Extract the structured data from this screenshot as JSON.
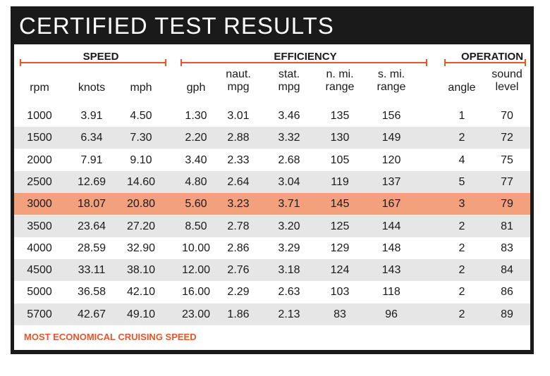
{
  "title": "CERTIFIED TEST RESULTS",
  "groups": {
    "speed": "SPEED",
    "efficiency": "EFFICIENCY",
    "operation": "OPERATION"
  },
  "headers": [
    {
      "line1": "",
      "line2": "rpm"
    },
    {
      "line1": "",
      "line2": "knots"
    },
    {
      "line1": "",
      "line2": "mph"
    },
    {
      "line1": "",
      "line2": "gph"
    },
    {
      "line1": "naut.",
      "line2": "mpg"
    },
    {
      "line1": "stat.",
      "line2": "mpg"
    },
    {
      "line1": "n. mi.",
      "line2": "range"
    },
    {
      "line1": "s. mi.",
      "line2": "range"
    },
    {
      "line1": "",
      "line2": "angle"
    },
    {
      "line1": "sound",
      "line2": "level"
    }
  ],
  "rows": [
    [
      "1000",
      "3.91",
      "4.50",
      "1.30",
      "3.01",
      "3.46",
      "135",
      "156",
      "1",
      "70"
    ],
    [
      "1500",
      "6.34",
      "7.30",
      "2.20",
      "2.88",
      "3.32",
      "130",
      "149",
      "2",
      "72"
    ],
    [
      "2000",
      "7.91",
      "9.10",
      "3.40",
      "2.33",
      "2.68",
      "105",
      "120",
      "4",
      "75"
    ],
    [
      "2500",
      "12.69",
      "14.60",
      "4.80",
      "2.64",
      "3.04",
      "119",
      "137",
      "5",
      "77"
    ],
    [
      "3000",
      "18.07",
      "20.80",
      "5.60",
      "3.23",
      "3.71",
      "145",
      "167",
      "3",
      "79"
    ],
    [
      "3500",
      "23.64",
      "27.20",
      "8.50",
      "2.78",
      "3.20",
      "125",
      "144",
      "2",
      "81"
    ],
    [
      "4000",
      "28.59",
      "32.90",
      "10.00",
      "2.86",
      "3.29",
      "129",
      "148",
      "2",
      "83"
    ],
    [
      "4500",
      "33.11",
      "38.10",
      "12.00",
      "2.76",
      "3.18",
      "124",
      "143",
      "2",
      "84"
    ],
    [
      "5000",
      "36.58",
      "42.10",
      "16.00",
      "2.29",
      "2.63",
      "103",
      "118",
      "2",
      "86"
    ],
    [
      "5700",
      "42.67",
      "49.10",
      "23.00",
      "1.86",
      "2.13",
      "83",
      "96",
      "2",
      "89"
    ]
  ],
  "highlight_row_index": 4,
  "footnote": "MOST ECONOMICAL CRUISING SPEED",
  "colors": {
    "accent": "#e8552a",
    "highlight": "#f3a07c",
    "alt_row": "#e6e6e6",
    "frame": "#1a1a1a"
  }
}
